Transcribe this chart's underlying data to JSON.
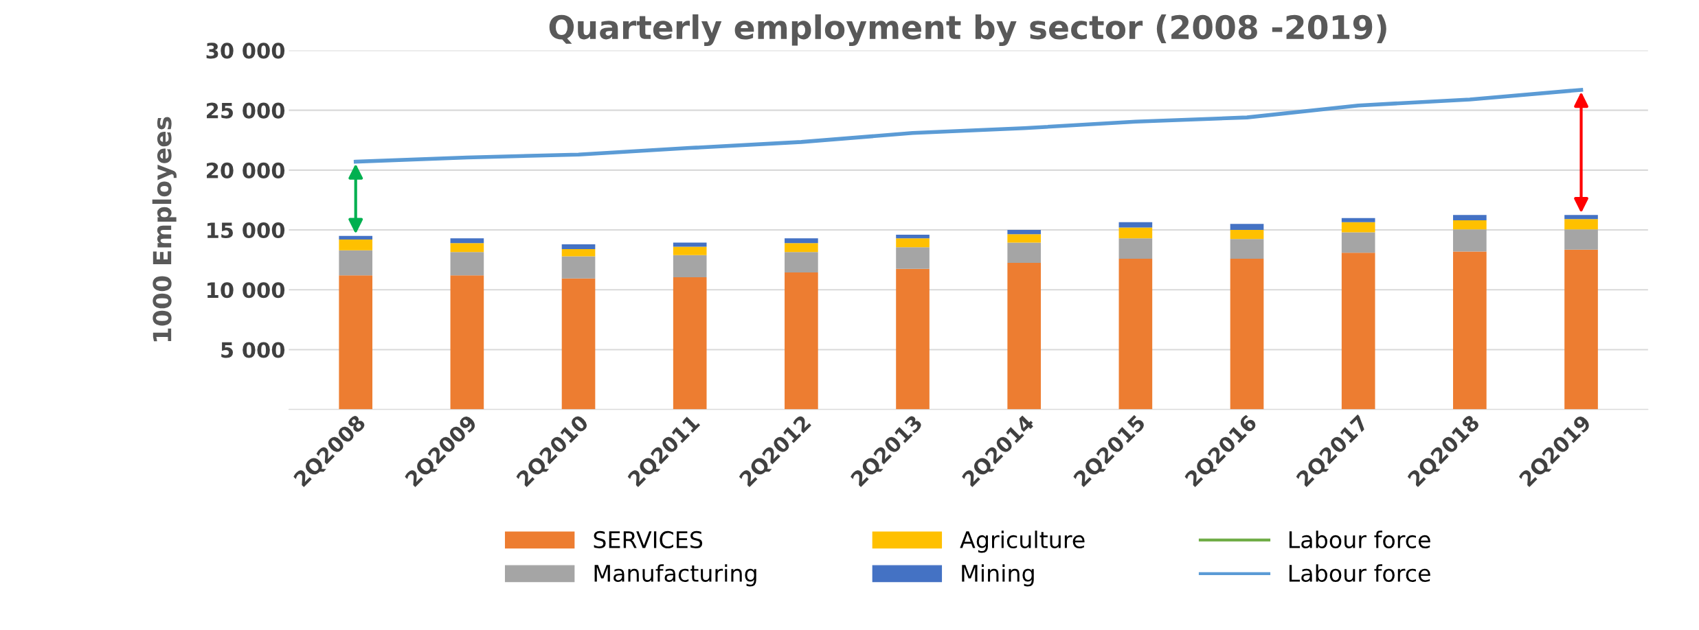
{
  "chart_data": {
    "type": "bar",
    "title": "Quarterly employment by sector (2008 -2019)",
    "ylabel": "1000 Employees",
    "categories": [
      "2Q2008",
      "2Q2009",
      "2Q2010",
      "2Q2011",
      "2Q2012",
      "2Q2013",
      "2Q2014",
      "2Q2015",
      "2Q2016",
      "2Q2017",
      "2Q2018",
      "2Q2019"
    ],
    "stacked": true,
    "series": [
      {
        "name": "SERVICES",
        "color": "#ed7d31",
        "values": [
          11200,
          11200,
          10950,
          11050,
          11450,
          11750,
          12250,
          12600,
          12600,
          13100,
          13200,
          13350
        ]
      },
      {
        "name": "Manufacturing",
        "color": "#a5a5a5",
        "values": [
          2100,
          1950,
          1850,
          1850,
          1700,
          1800,
          1700,
          1700,
          1650,
          1700,
          1850,
          1700
        ]
      },
      {
        "name": "Agriculture",
        "color": "#ffc000",
        "values": [
          900,
          750,
          600,
          700,
          750,
          750,
          700,
          900,
          750,
          850,
          750,
          850
        ]
      },
      {
        "name": "Mining",
        "color": "#4472c4",
        "values": [
          300,
          400,
          400,
          350,
          400,
          300,
          350,
          450,
          500,
          350,
          450,
          350
        ]
      },
      {
        "name": "Labour force",
        "type": "line",
        "color": "#70ad47",
        "values": [
          null,
          null,
          null,
          null,
          null,
          null,
          null,
          null,
          null,
          null,
          null,
          null
        ]
      },
      {
        "name": "Labour force",
        "type": "line",
        "color": "#5b9bd5",
        "values": [
          20700,
          21050,
          21300,
          21850,
          22350,
          23100,
          23500,
          24050,
          24400,
          25400,
          25900,
          26700
        ]
      }
    ],
    "ylim": [
      0,
      30000
    ],
    "yticks": [
      {
        "value": 0,
        "label": null
      },
      {
        "value": 5000,
        "label": "5 000"
      },
      {
        "value": 10000,
        "label": "10 000"
      },
      {
        "value": 15000,
        "label": "15 000"
      },
      {
        "value": 20000,
        "label": "20 000"
      },
      {
        "value": 25000,
        "label": "25 000"
      },
      {
        "value": 30000,
        "label": "30 000"
      }
    ],
    "grid": "y",
    "legend": "bottom"
  }
}
